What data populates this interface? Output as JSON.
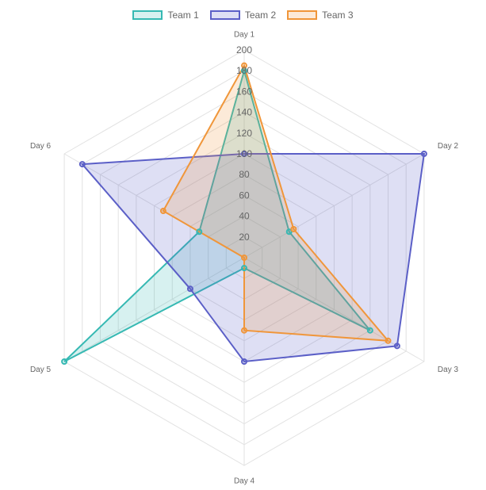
{
  "chart_data": {
    "type": "radar",
    "title": "",
    "categories": [
      "Day 1",
      "Day 2",
      "Day 3",
      "Day 4",
      "Day 5",
      "Day 6"
    ],
    "r_range": [
      0,
      200
    ],
    "r_ticks": [
      "20",
      "40",
      "60",
      "80",
      "100",
      "120",
      "140",
      "160",
      "180",
      "200"
    ],
    "legend_position": "top",
    "grid": true,
    "series": [
      {
        "name": "Team 1",
        "color": "#36B9B3",
        "fill": "rgba(54,185,179,0.2)",
        "values": [
          180,
          50,
          140,
          10,
          200,
          50
        ]
      },
      {
        "name": "Team 2",
        "color": "#5B5FC7",
        "fill": "rgba(91,95,199,0.2)",
        "values": [
          100,
          200,
          170,
          100,
          60,
          180
        ]
      },
      {
        "name": "Team 3",
        "color": "#F0963A",
        "fill": "rgba(240,150,58,0.2)",
        "values": [
          185,
          55,
          160,
          70,
          0,
          90
        ]
      }
    ]
  }
}
